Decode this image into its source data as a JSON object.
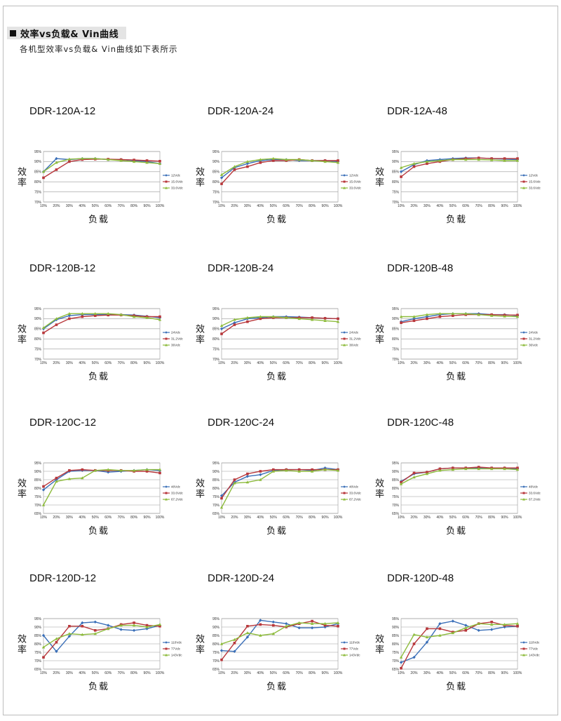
{
  "header": {
    "title": "效率vs负载& Vin曲线",
    "subtitle": "各机型效率vs负载& Vin曲线如下表所示"
  },
  "x_ticks": [
    "10%",
    "20%",
    "30%",
    "40%",
    "50%",
    "60%",
    "70%",
    "80%",
    "90%",
    "100%"
  ],
  "colors": {
    "series1": "#3a6fb8",
    "series2": "#b8373b",
    "series3": "#8dbb3c",
    "grid": "#9a9a9a",
    "plot_bg": "#ffffff"
  },
  "axis_labels": {
    "y": "效率",
    "x": "负载"
  },
  "chart_data": [
    {
      "type": "line",
      "title": "DDR-120A-12",
      "ylim": [
        70,
        95
      ],
      "yticks": [
        "95%",
        "90%",
        "85%",
        "80%",
        "75%",
        "70%"
      ],
      "x": [
        "10%",
        "20%",
        "30%",
        "40%",
        "50%",
        "60%",
        "70%",
        "80%",
        "90%",
        "100%"
      ],
      "series": [
        {
          "name": "12Vdc",
          "values": [
            85,
            91.5,
            91,
            91.5,
            91.5,
            91,
            91,
            90.5,
            90,
            89
          ]
        },
        {
          "name": "15.6Vdc",
          "values": [
            82,
            86,
            90,
            91,
            91.2,
            91.2,
            91,
            90.8,
            90.5,
            90.2
          ]
        },
        {
          "name": "33.6Vdc",
          "values": [
            85,
            89.5,
            91.2,
            91.5,
            91.5,
            91,
            90.5,
            90,
            89.5,
            89
          ]
        }
      ]
    },
    {
      "type": "line",
      "title": "DDR-120A-24",
      "ylim": [
        70,
        95
      ],
      "yticks": [
        "95%",
        "90%",
        "85%",
        "80%",
        "75%",
        "70%"
      ],
      "x": [
        "10%",
        "20%",
        "30%",
        "40%",
        "50%",
        "60%",
        "70%",
        "80%",
        "90%",
        "100%"
      ],
      "series": [
        {
          "name": "12Vdc",
          "values": [
            82,
            87,
            89,
            90.5,
            91,
            91,
            90.5,
            90.5,
            90.5,
            90
          ]
        },
        {
          "name": "15.6Vdc",
          "values": [
            79,
            86,
            87.5,
            89.5,
            90.5,
            90.5,
            91,
            90.5,
            90.5,
            90.5
          ]
        },
        {
          "name": "33.6Vdc",
          "values": [
            83.5,
            87.5,
            90,
            91,
            91.5,
            91,
            91,
            90.5,
            90,
            89.5
          ]
        }
      ]
    },
    {
      "type": "line",
      "title": "DDR-12A-48",
      "ylim": [
        70,
        95
      ],
      "yticks": [
        "95%",
        "90%",
        "85%",
        "80%",
        "75%",
        "70%"
      ],
      "x": [
        "10%",
        "20%",
        "30%",
        "40%",
        "50%",
        "60%",
        "70%",
        "80%",
        "90%",
        "100%"
      ],
      "series": [
        {
          "name": "12Vdc",
          "values": [
            85,
            88.5,
            90.5,
            91,
            91.5,
            91.8,
            91.8,
            91.5,
            91.2,
            91
          ]
        },
        {
          "name": "15.6Vdc",
          "values": [
            82.5,
            87.5,
            89,
            90,
            91,
            91.5,
            91.8,
            91.5,
            91.5,
            91.5
          ]
        },
        {
          "name": "33.6Vdc",
          "values": [
            87,
            89,
            90,
            90.5,
            91,
            91,
            91,
            90.8,
            90.5,
            90.5
          ]
        }
      ]
    },
    {
      "type": "line",
      "title": "DDR-120B-12",
      "ylim": [
        70,
        95
      ],
      "yticks": [
        "95%",
        "90%",
        "85%",
        "80%",
        "75%",
        "70%"
      ],
      "x": [
        "10%",
        "20%",
        "30%",
        "40%",
        "50%",
        "60%",
        "70%",
        "80%",
        "90%",
        "100%"
      ],
      "series": [
        {
          "name": "24Vdc",
          "values": [
            85,
            89.5,
            91.5,
            92,
            92,
            92,
            92,
            91.8,
            91.2,
            90.5
          ]
        },
        {
          "name": "31.2Vdc",
          "values": [
            83,
            87,
            90,
            91,
            91.5,
            91.8,
            91.8,
            91.5,
            91,
            91
          ]
        },
        {
          "name": "36Vdc",
          "values": [
            85.5,
            90,
            92.5,
            92.5,
            92.5,
            92.5,
            92,
            91,
            90.5,
            89.5
          ]
        }
      ]
    },
    {
      "type": "line",
      "title": "DDR-120B-24",
      "ylim": [
        70,
        95
      ],
      "yticks": [
        "95%",
        "90%",
        "85%",
        "80%",
        "75%",
        "70%"
      ],
      "x": [
        "10%",
        "20%",
        "30%",
        "40%",
        "50%",
        "60%",
        "70%",
        "80%",
        "90%",
        "100%"
      ],
      "series": [
        {
          "name": "24Vdc",
          "values": [
            85,
            88,
            90,
            90.5,
            91,
            91,
            90.8,
            90.5,
            90.2,
            90
          ]
        },
        {
          "name": "31.2Vdc",
          "values": [
            82.5,
            87,
            88.5,
            90,
            90.5,
            90.5,
            90.5,
            90.5,
            90.2,
            90
          ]
        },
        {
          "name": "36Vdc",
          "values": [
            86.5,
            89.5,
            90.5,
            91,
            91,
            90.5,
            90,
            89.5,
            89,
            88.5
          ]
        }
      ]
    },
    {
      "type": "line",
      "title": "DDR-120B-48",
      "ylim": [
        70,
        95
      ],
      "yticks": [
        "95%",
        "90%",
        "85%",
        "80%",
        "75%",
        "70%"
      ],
      "x": [
        "10%",
        "20%",
        "30%",
        "40%",
        "50%",
        "60%",
        "70%",
        "80%",
        "90%",
        "100%"
      ],
      "series": [
        {
          "name": "24Vdc",
          "values": [
            88.5,
            90,
            91,
            92,
            92.5,
            92.5,
            92.5,
            92,
            92,
            91.5
          ]
        },
        {
          "name": "31.2Vdc",
          "values": [
            88,
            89,
            90,
            91,
            91.5,
            92,
            92,
            92,
            91.8,
            91.8
          ]
        },
        {
          "name": "36Vdc",
          "values": [
            91,
            91,
            92,
            92.5,
            92.5,
            92.5,
            92,
            91.5,
            91.2,
            91
          ]
        }
      ]
    },
    {
      "type": "line",
      "title": "DDR-120C-12",
      "ylim": [
        65,
        95
      ],
      "yticks": [
        "95%",
        "90%",
        "85%",
        "80%",
        "75%",
        "70%",
        "65%"
      ],
      "x": [
        "10%",
        "20%",
        "30%",
        "40%",
        "50%",
        "60%",
        "70%",
        "80%",
        "90%",
        "100%"
      ],
      "series": [
        {
          "name": "48Vdc",
          "values": [
            79,
            85,
            90,
            90.5,
            90.5,
            89.5,
            90,
            90.5,
            91,
            90.5
          ]
        },
        {
          "name": "33.6Vdc",
          "values": [
            81,
            86,
            90.5,
            91,
            90.5,
            90.5,
            90.5,
            90,
            90,
            89
          ]
        },
        {
          "name": "67.2Vdc",
          "values": [
            70,
            84,
            85.5,
            86,
            90.5,
            91,
            90.5,
            90.5,
            91,
            91
          ]
        }
      ]
    },
    {
      "type": "line",
      "title": "DDR-120C-24",
      "ylim": [
        65,
        95
      ],
      "yticks": [
        "95%",
        "90%",
        "85%",
        "80%",
        "75%",
        "70%",
        "65%"
      ],
      "x": [
        "10%",
        "20%",
        "30%",
        "40%",
        "50%",
        "60%",
        "70%",
        "80%",
        "90%",
        "100%"
      ],
      "series": [
        {
          "name": "48Vdc",
          "values": [
            75.5,
            83.5,
            87,
            88,
            90.5,
            91,
            91,
            90.5,
            92,
            91
          ]
        },
        {
          "name": "33.6Vdc",
          "values": [
            74,
            85,
            88.5,
            90,
            91,
            91,
            91,
            91,
            91,
            91
          ]
        },
        {
          "name": "67.2Vdc",
          "values": [
            68.5,
            83,
            83.5,
            85,
            90,
            90.5,
            90,
            90,
            91,
            90.5
          ]
        }
      ]
    },
    {
      "type": "line",
      "title": "DDR-120C-48",
      "ylim": [
        65,
        95
      ],
      "yticks": [
        "95%",
        "90%",
        "85%",
        "80%",
        "75%",
        "70%",
        "65%"
      ],
      "x": [
        "10%",
        "20%",
        "30%",
        "40%",
        "50%",
        "60%",
        "70%",
        "80%",
        "90%",
        "100%"
      ],
      "series": [
        {
          "name": "48Vdc",
          "values": [
            84,
            88.5,
            89.5,
            91.5,
            92,
            92,
            92,
            92,
            92,
            91.5
          ]
        },
        {
          "name": "33.6Vdc",
          "values": [
            83.5,
            89,
            89.5,
            91.5,
            92,
            92,
            92.5,
            92,
            92,
            92
          ]
        },
        {
          "name": "67.2Vdc",
          "values": [
            82.5,
            86.5,
            88.5,
            90.5,
            91,
            91.5,
            91.5,
            91.5,
            91.5,
            91
          ]
        }
      ]
    },
    {
      "type": "line",
      "title": "DDR-120D-12",
      "ylim": [
        65,
        95
      ],
      "yticks": [
        "95%",
        "90%",
        "85%",
        "80%",
        "75%",
        "70%",
        "65%"
      ],
      "x": [
        "10%",
        "20%",
        "30%",
        "40%",
        "50%",
        "60%",
        "70%",
        "80%",
        "90%",
        "100%"
      ],
      "series": [
        {
          "name": "110Vdc",
          "values": [
            85,
            75.5,
            84.5,
            92.5,
            93,
            91,
            88.5,
            88,
            89,
            91
          ]
        },
        {
          "name": "77Vdc",
          "values": [
            72,
            81,
            90.5,
            90.5,
            88,
            89,
            91.5,
            92.5,
            91,
            90.5
          ]
        },
        {
          "name": "143Vdc",
          "values": [
            78,
            83,
            86,
            85.5,
            86,
            89,
            91,
            91,
            90,
            91.5
          ]
        }
      ]
    },
    {
      "type": "line",
      "title": "DDR-120D-24",
      "ylim": [
        65,
        95
      ],
      "yticks": [
        "95%",
        "90%",
        "85%",
        "80%",
        "75%",
        "70%",
        "65%"
      ],
      "x": [
        "10%",
        "20%",
        "30%",
        "40%",
        "50%",
        "60%",
        "70%",
        "80%",
        "90%",
        "100%"
      ],
      "series": [
        {
          "name": "110Vdc",
          "values": [
            76,
            75.5,
            84,
            94,
            93,
            92,
            89.5,
            89.5,
            90,
            92
          ]
        },
        {
          "name": "77Vdc",
          "values": [
            70.5,
            80.5,
            90.5,
            91.5,
            91,
            90,
            92,
            93.5,
            91,
            90.5
          ]
        },
        {
          "name": "143Vdc",
          "values": [
            80,
            82.5,
            86.5,
            85,
            86,
            90.5,
            92.5,
            92,
            92,
            92.5
          ]
        }
      ]
    },
    {
      "type": "line",
      "title": "DDR-120D-48",
      "ylim": [
        65,
        95
      ],
      "yticks": [
        "95%",
        "90%",
        "85%",
        "80%",
        "75%",
        "70%",
        "65%"
      ],
      "x": [
        "10%",
        "20%",
        "30%",
        "40%",
        "50%",
        "60%",
        "70%",
        "80%",
        "90%",
        "100%"
      ],
      "series": [
        {
          "name": "110Vdc",
          "values": [
            69,
            72,
            81,
            92,
            93.5,
            91,
            88,
            88.5,
            90,
            90.5
          ]
        },
        {
          "name": "77Vdc",
          "values": [
            65.5,
            80,
            89,
            89,
            87,
            88,
            92,
            93,
            91,
            90.5
          ]
        },
        {
          "name": "143Vdc",
          "values": [
            72,
            85.5,
            84,
            85,
            86.5,
            89.5,
            92,
            91.5,
            91.5,
            92
          ]
        }
      ]
    }
  ]
}
